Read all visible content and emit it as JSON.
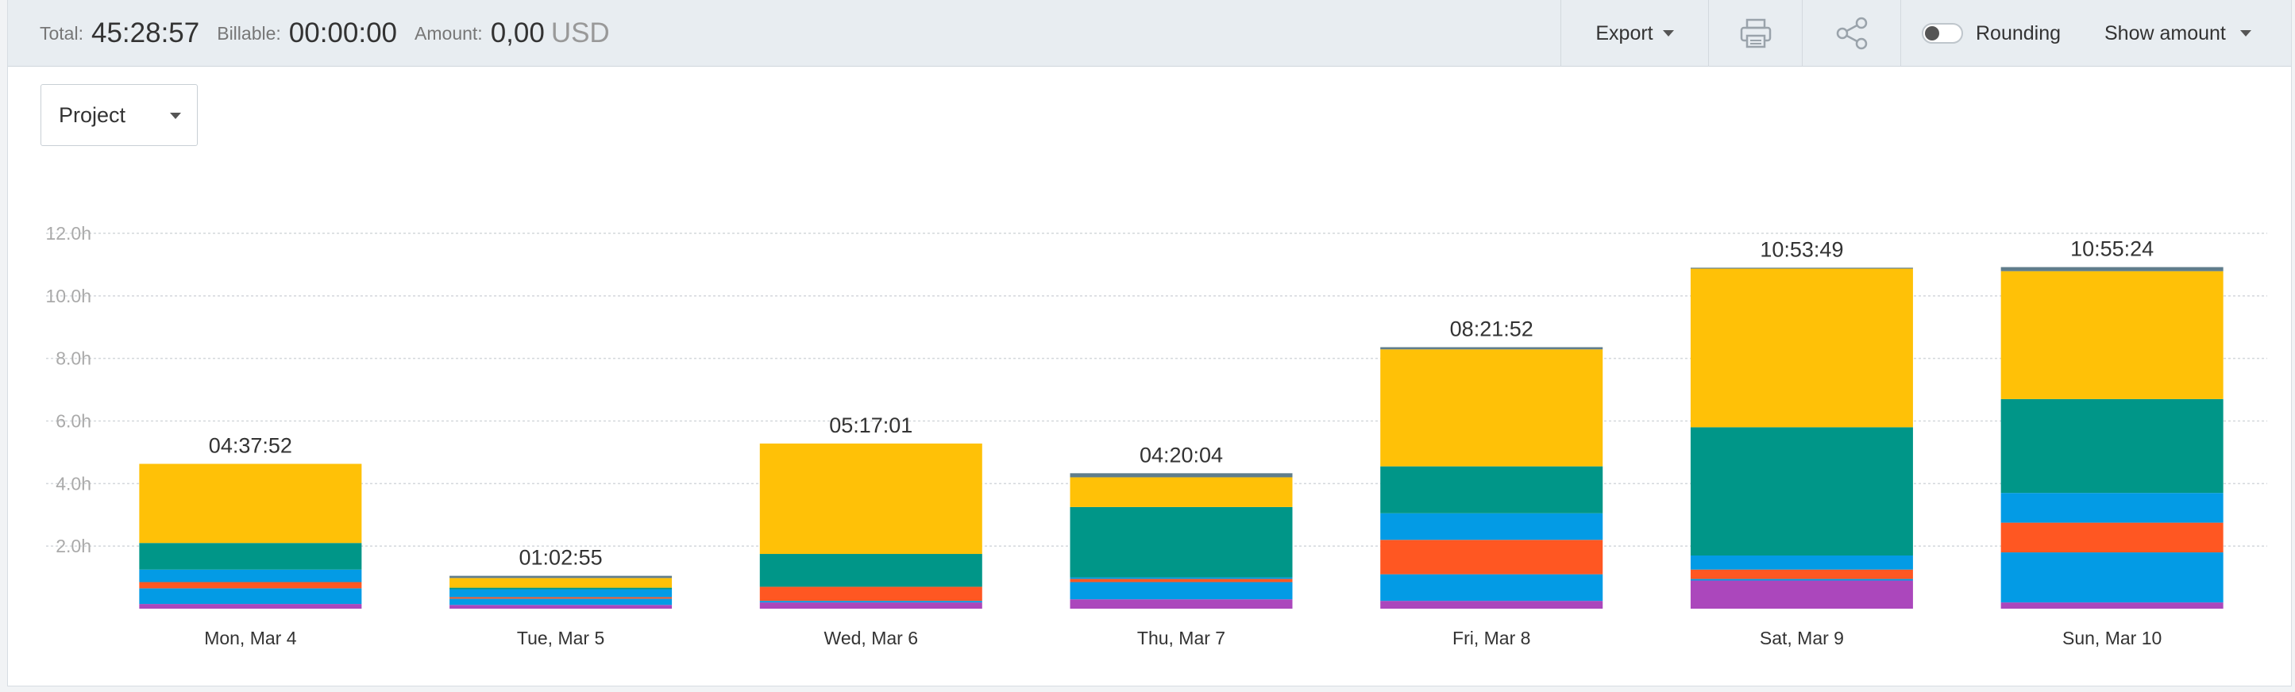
{
  "summary": {
    "total_label": "Total:",
    "total_value": "45:28:57",
    "billable_label": "Billable:",
    "billable_value": "00:00:00",
    "amount_label": "Amount:",
    "amount_value": "0,00",
    "amount_unit": "USD"
  },
  "toolbar": {
    "export_label": "Export",
    "print_icon": "printer-icon",
    "share_icon": "share-icon",
    "rounding_label": "Rounding",
    "rounding_on": false,
    "show_amount_label": "Show amount"
  },
  "group_by": {
    "selected": "Project"
  },
  "colors": {
    "purple": "#ab47bc",
    "blue": "#039be5",
    "orange": "#ff5722",
    "teal": "#009688",
    "yellow": "#ffc107",
    "gray": "#607d8b"
  },
  "chart_data": {
    "type": "bar",
    "stacked": true,
    "categories": [
      "Mon, Mar 4",
      "Tue, Mar 5",
      "Wed, Mar 6",
      "Thu, Mar 7",
      "Fri, Mar 8",
      "Sat, Mar 9",
      "Sun, Mar 10"
    ],
    "totals": [
      "04:37:52",
      "01:02:55",
      "05:17:01",
      "04:20:04",
      "08:21:52",
      "10:53:49",
      "10:55:24"
    ],
    "ylim": [
      0,
      12
    ],
    "yticks": [
      "2.0h",
      "4.0h",
      "6.0h",
      "8.0h",
      "10.0h",
      "12.0h"
    ],
    "ytick_values": [
      2,
      4,
      6,
      8,
      10,
      12
    ],
    "grid": true,
    "series": [
      {
        "color": "#ab47bc",
        "values": [
          0.15,
          0.12,
          0.2,
          0.3,
          0.25,
          0.9,
          0.2
        ]
      },
      {
        "color": "#039be5",
        "values": [
          0.5,
          0.2,
          0.05,
          0.55,
          0.85,
          0.05,
          1.6
        ]
      },
      {
        "color": "#ff5722",
        "values": [
          0.2,
          0.05,
          0.45,
          0.1,
          1.1,
          0.3,
          0.95
        ]
      },
      {
        "color": "#039be5",
        "values": [
          0.4,
          0.25,
          0.0,
          0.05,
          0.85,
          0.45,
          0.95
        ]
      },
      {
        "color": "#009688",
        "values": [
          0.85,
          0.05,
          1.05,
          2.25,
          1.5,
          4.1,
          3.0
        ]
      },
      {
        "color": "#ffc107",
        "values": [
          2.53,
          0.31,
          3.53,
          0.95,
          3.74,
          5.07,
          4.09
        ]
      },
      {
        "color": "#607d8b",
        "values": [
          0.0,
          0.07,
          0.0,
          0.13,
          0.07,
          0.03,
          0.13
        ]
      }
    ]
  }
}
